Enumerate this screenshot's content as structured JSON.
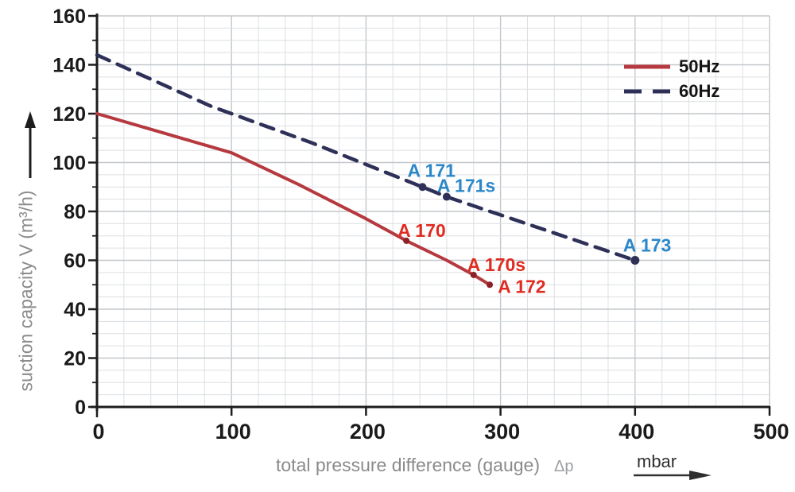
{
  "chart_data": {
    "type": "line",
    "title": "",
    "xlabel": "total pressure difference (gauge)",
    "xlabel_symbol": "Δp",
    "x_unit": "mbar",
    "ylabel": "suction capacity V (m³/h)",
    "xlim": [
      0,
      500
    ],
    "ylim": [
      0,
      160
    ],
    "x_ticks": [
      0,
      100,
      200,
      300,
      400,
      500
    ],
    "y_ticks": [
      0,
      20,
      40,
      60,
      80,
      100,
      120,
      140,
      160
    ],
    "x_minor_step": 20,
    "y_minor_step": 5,
    "y_minor_tick_step": 10,
    "grid": true,
    "legend_position": "top-right",
    "series": [
      {
        "name": "50Hz",
        "style": "solid",
        "color": "#b5393f",
        "points": [
          [
            0,
            120
          ],
          [
            50,
            112
          ],
          [
            100,
            104
          ],
          [
            150,
            91
          ],
          [
            200,
            77
          ],
          [
            230,
            68
          ],
          [
            260,
            60
          ],
          [
            280,
            54
          ],
          [
            292,
            50
          ]
        ]
      },
      {
        "name": "60Hz",
        "style": "dashed",
        "color": "#2e3058",
        "points": [
          [
            0,
            144
          ],
          [
            85,
            123
          ],
          [
            160,
            108
          ],
          [
            242,
            90
          ],
          [
            260,
            86
          ],
          [
            400,
            60
          ]
        ]
      }
    ],
    "annotations": [
      {
        "label": "A 170",
        "x": 230,
        "y": 68,
        "series": "50Hz",
        "label_color": "#e02b21",
        "dot_color": "#8c2126",
        "dot_r": 4,
        "offset": [
          -11,
          -5
        ]
      },
      {
        "label": "A 170s",
        "x": 280,
        "y": 54,
        "series": "50Hz",
        "label_color": "#e02b21",
        "dot_color": "#8c2126",
        "dot_r": 4,
        "offset": [
          -8,
          -5
        ]
      },
      {
        "label": "A 172",
        "x": 292,
        "y": 50,
        "series": "50Hz",
        "label_color": "#e02b21",
        "dot_color": "#8c2126",
        "dot_r": 4,
        "offset": [
          10,
          10
        ]
      },
      {
        "label": "A 171",
        "x": 242,
        "y": 90,
        "series": "60Hz",
        "label_color": "#2c87c8",
        "dot_color": "#2e3058",
        "dot_r": 5,
        "offset": [
          -19,
          -13
        ]
      },
      {
        "label": "A 171s",
        "x": 260,
        "y": 86,
        "series": "60Hz",
        "label_color": "#2c87c8",
        "dot_color": "#2e3058",
        "dot_r": 5,
        "offset": [
          -12,
          -6
        ]
      },
      {
        "label": "A 173",
        "x": 400,
        "y": 60,
        "series": "60Hz",
        "label_color": "#2c87c8",
        "dot_color": "#2e3058",
        "dot_r": 5.5,
        "offset": [
          -15,
          -11
        ]
      }
    ],
    "colors": {
      "grid_minor": "#dcdfe2",
      "grid_major": "#c3c7cb",
      "axis": "#1d1d1d",
      "tick_label": "#1a1a1a",
      "axis_title": "#8b8b8b",
      "unit_text": "#2f2f2f"
    }
  }
}
